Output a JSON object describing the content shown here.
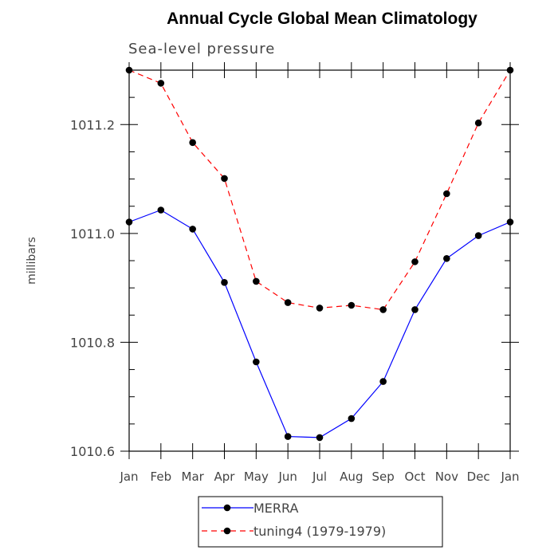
{
  "chart_data": {
    "type": "line",
    "title": "Annual Cycle Global Mean Climatology",
    "subtitle": "Sea-level pressure",
    "ylabel": "millibars",
    "xlabel": "",
    "categories": [
      "Jan",
      "Feb",
      "Mar",
      "Apr",
      "May",
      "Jun",
      "Jul",
      "Aug",
      "Sep",
      "Oct",
      "Nov",
      "Dec",
      "Jan"
    ],
    "ylim": [
      1010.6,
      1011.3
    ],
    "yticks": [
      {
        "value": 1010.6,
        "label": "1010.6"
      },
      {
        "value": 1010.8,
        "label": "1010.8"
      },
      {
        "value": 1011.0,
        "label": "1011.0"
      },
      {
        "value": 1011.2,
        "label": "1011.2"
      }
    ],
    "y_minor_step": 0.05,
    "grid": false,
    "legend_position": "bottom",
    "series": [
      {
        "name": "MERRA",
        "color": "#0000ff",
        "dash": "solid",
        "marker": "circle",
        "values": [
          1011.021,
          1011.043,
          1011.008,
          1010.91,
          1010.764,
          1010.627,
          1010.625,
          1010.66,
          1010.728,
          1010.86,
          1010.954,
          1010.996,
          1011.021
        ]
      },
      {
        "name": "tuning4 (1979-1979)",
        "color": "#ff0000",
        "dash": "dashed",
        "marker": "circle",
        "values": [
          1011.3,
          1011.276,
          1011.167,
          1011.101,
          1010.912,
          1010.873,
          1010.863,
          1010.868,
          1010.86,
          1010.948,
          1011.073,
          1011.203,
          1011.3
        ]
      }
    ]
  }
}
